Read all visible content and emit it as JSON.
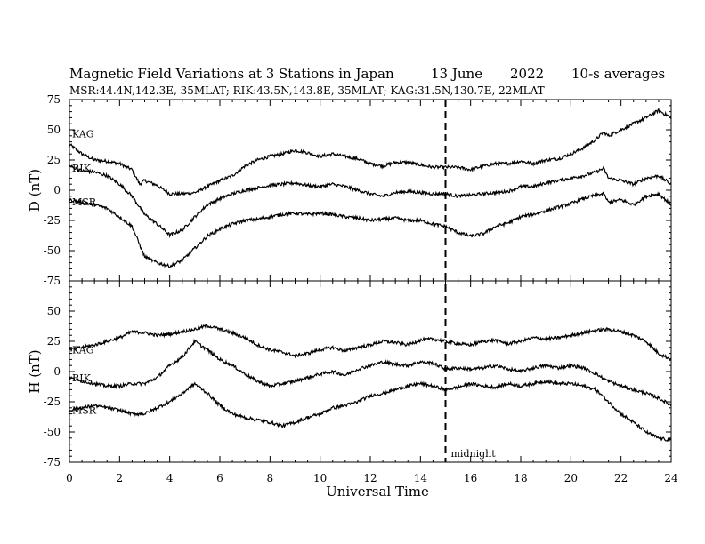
{
  "header": {
    "title": "Magnetic Field Variations at 3 Stations in Japan",
    "date": "13 June",
    "year": "2022",
    "averaging": "10-s averages",
    "stations_line": "MSR:44.4N,142.3E, 35MLAT;  RIK:43.5N,143.8E, 35MLAT;  KAG:31.5N,130.7E, 22MLAT"
  },
  "chart_data": {
    "type": "line",
    "xlabel": "Universal Time",
    "xlim": [
      0,
      24
    ],
    "xticks": [
      0,
      2,
      4,
      6,
      8,
      10,
      12,
      14,
      16,
      18,
      20,
      22,
      24
    ],
    "annotation": {
      "text": "midnight",
      "x": 15
    },
    "panels": [
      {
        "ylabel": "D (nT)",
        "ylim": [
          -75,
          75
        ],
        "yticks": [
          75,
          50,
          25,
          0,
          -25,
          -50,
          -75
        ],
        "series": [
          {
            "name": "KAG",
            "x": [
              0,
              0.5,
              1,
              1.5,
              2,
              2.5,
              2.8,
              3,
              3.5,
              4,
              4.5,
              5,
              5.5,
              6,
              6.5,
              7,
              7.5,
              8,
              8.5,
              9,
              9.5,
              10,
              10.5,
              11,
              11.5,
              12,
              12.5,
              13,
              13.5,
              14,
              14.5,
              15,
              15.5,
              16,
              16.5,
              17,
              17.5,
              18,
              18.5,
              19,
              19.5,
              20,
              20.5,
              21,
              21.3,
              21.5,
              22,
              22.5,
              23,
              23.5,
              24
            ],
            "y": [
              38,
              30,
              25,
              24,
              22,
              17,
              5,
              8,
              4,
              -3,
              -3,
              -2,
              3,
              8,
              12,
              20,
              25,
              28,
              30,
              33,
              31,
              28,
              30,
              28,
              26,
              22,
              20,
              23,
              23,
              21,
              19,
              19,
              19,
              17,
              20,
              22,
              22,
              24,
              22,
              25,
              26,
              30,
              35,
              42,
              48,
              45,
              50,
              55,
              60,
              66,
              60
            ]
          },
          {
            "name": "RIK",
            "x": [
              0,
              0.5,
              1,
              1.5,
              2,
              2.5,
              2.8,
              3,
              3.5,
              4,
              4.5,
              5,
              5.5,
              6,
              6.5,
              7,
              7.5,
              8,
              8.5,
              9,
              9.5,
              10,
              10.5,
              11,
              11.5,
              12,
              12.5,
              13,
              13.5,
              14,
              14.5,
              15,
              15.5,
              16,
              16.5,
              17,
              17.5,
              18,
              18.5,
              19,
              19.5,
              20,
              20.5,
              21,
              21.3,
              21.5,
              22,
              22.5,
              23,
              23.5,
              24
            ],
            "y": [
              20,
              16,
              15,
              12,
              5,
              -5,
              -14,
              -20,
              -28,
              -37,
              -33,
              -22,
              -12,
              -7,
              -3,
              0,
              2,
              4,
              5,
              6,
              4,
              3,
              5,
              3,
              0,
              -3,
              -5,
              -2,
              -1,
              -2,
              -3,
              -3,
              -5,
              -4,
              -3,
              -2,
              -1,
              3,
              3,
              6,
              8,
              10,
              12,
              15,
              18,
              10,
              8,
              5,
              10,
              12,
              5
            ]
          },
          {
            "name": "MSR",
            "x": [
              0,
              0.5,
              1,
              1.5,
              2,
              2.5,
              2.8,
              3,
              3.5,
              4,
              4.5,
              5,
              5.5,
              6,
              6.5,
              7,
              7.5,
              8,
              8.5,
              9,
              9.5,
              10,
              10.5,
              11,
              11.5,
              12,
              12.5,
              13,
              13.5,
              14,
              14.5,
              15,
              15.5,
              16,
              16.5,
              17,
              17.5,
              18,
              18.5,
              19,
              19.5,
              20,
              20.5,
              21,
              21.3,
              21.5,
              22,
              22.5,
              23,
              23.5,
              24
            ],
            "y": [
              -8,
              -10,
              -12,
              -15,
              -22,
              -30,
              -45,
              -55,
              -60,
              -63,
              -58,
              -48,
              -38,
              -32,
              -28,
              -25,
              -24,
              -22,
              -20,
              -19,
              -20,
              -19,
              -20,
              -22,
              -23,
              -25,
              -24,
              -23,
              -25,
              -25,
              -28,
              -30,
              -35,
              -38,
              -36,
              -30,
              -27,
              -22,
              -20,
              -17,
              -14,
              -11,
              -7,
              -4,
              -3,
              -10,
              -8,
              -12,
              -5,
              -3,
              -12
            ]
          }
        ]
      },
      {
        "ylabel": "H (nT)",
        "ylim": [
          -75,
          75
        ],
        "yticks": [
          75,
          50,
          25,
          0,
          -25,
          -50,
          -75
        ],
        "series": [
          {
            "name": "KAG",
            "x": [
              0,
              0.5,
              1,
              1.5,
              2,
              2.5,
              3,
              3.5,
              4,
              4.5,
              5,
              5.5,
              6,
              6.5,
              7,
              7.5,
              8,
              8.5,
              9,
              9.5,
              10,
              10.5,
              11,
              11.5,
              12,
              12.5,
              13,
              13.5,
              14,
              14.5,
              15,
              15.5,
              16,
              16.5,
              17,
              17.5,
              18,
              18.5,
              19,
              19.5,
              20,
              20.5,
              21,
              21.5,
              22,
              22.5,
              23,
              23.5,
              24
            ],
            "y": [
              18,
              20,
              22,
              25,
              28,
              33,
              32,
              30,
              31,
              33,
              35,
              38,
              35,
              32,
              28,
              22,
              18,
              16,
              13,
              15,
              18,
              20,
              17,
              20,
              22,
              25,
              24,
              22,
              26,
              27,
              25,
              23,
              22,
              25,
              26,
              23,
              25,
              28,
              27,
              28,
              30,
              32,
              34,
              35,
              33,
              30,
              25,
              15,
              10
            ]
          },
          {
            "name": "RIK",
            "x": [
              0,
              0.5,
              1,
              1.5,
              2,
              2.5,
              3,
              3.5,
              4,
              4.5,
              5,
              5.5,
              6,
              6.5,
              7,
              7.5,
              8,
              8.5,
              9,
              9.5,
              10,
              10.5,
              11,
              11.5,
              12,
              12.5,
              13,
              13.5,
              14,
              14.5,
              15,
              15.5,
              16,
              16.5,
              17,
              17.5,
              18,
              18.5,
              19,
              19.5,
              20,
              20.5,
              21,
              21.5,
              22,
              22.5,
              23,
              23.5,
              24
            ],
            "y": [
              -5,
              -8,
              -10,
              -12,
              -12,
              -10,
              -10,
              -5,
              5,
              12,
              25,
              18,
              10,
              5,
              -2,
              -8,
              -12,
              -10,
              -8,
              -5,
              -2,
              0,
              -3,
              2,
              5,
              8,
              6,
              5,
              8,
              7,
              2,
              3,
              2,
              3,
              5,
              2,
              0,
              3,
              5,
              3,
              5,
              3,
              -2,
              -8,
              -12,
              -15,
              -18,
              -22,
              -28
            ]
          },
          {
            "name": "MSR",
            "x": [
              0,
              0.5,
              1,
              1.5,
              2,
              2.5,
              3,
              3.5,
              4,
              4.5,
              5,
              5.5,
              6,
              6.5,
              7,
              7.5,
              8,
              8.5,
              9,
              9.5,
              10,
              10.5,
              11,
              11.5,
              12,
              12.5,
              13,
              13.5,
              14,
              14.5,
              15,
              15.5,
              16,
              16.5,
              17,
              17.5,
              18,
              18.5,
              19,
              19.5,
              20,
              20.5,
              21,
              21.5,
              22,
              22.5,
              23,
              23.5,
              24
            ],
            "y": [
              -32,
              -30,
              -28,
              -30,
              -32,
              -35,
              -35,
              -30,
              -25,
              -18,
              -10,
              -18,
              -28,
              -35,
              -38,
              -40,
              -42,
              -45,
              -42,
              -38,
              -35,
              -30,
              -28,
              -25,
              -20,
              -18,
              -15,
              -12,
              -10,
              -12,
              -15,
              -13,
              -10,
              -12,
              -13,
              -10,
              -12,
              -10,
              -8,
              -10,
              -10,
              -12,
              -15,
              -25,
              -35,
              -42,
              -50,
              -55,
              -57
            ]
          }
        ]
      }
    ]
  }
}
